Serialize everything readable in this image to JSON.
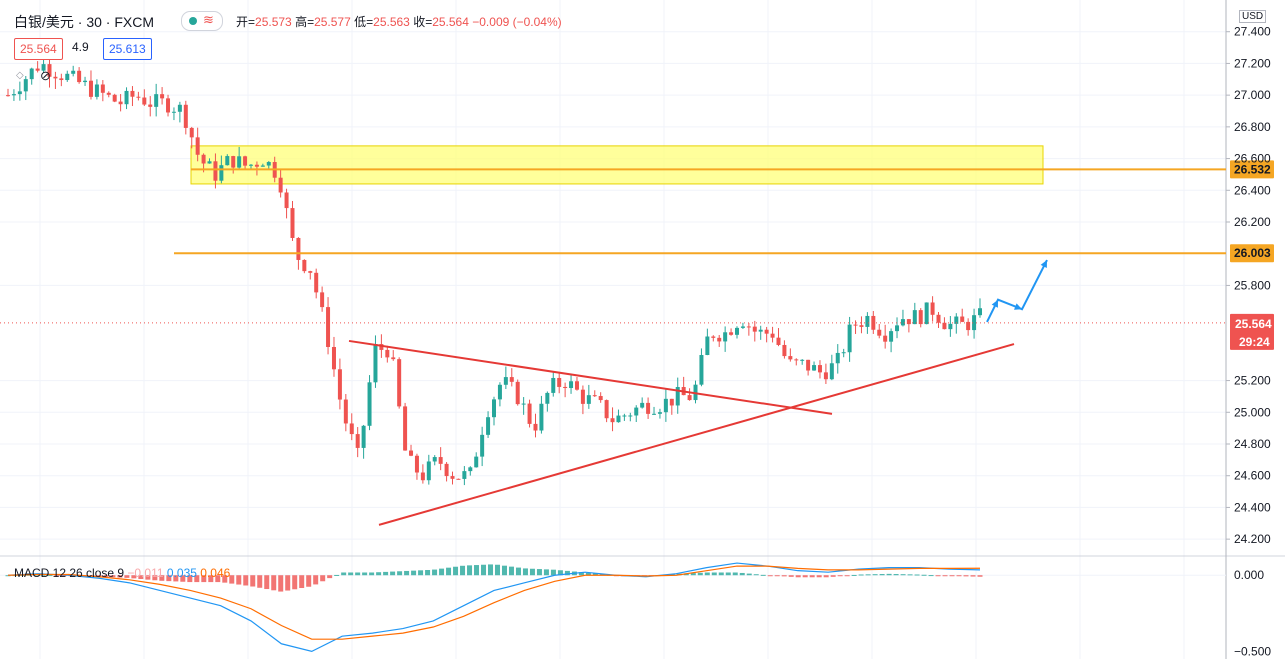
{
  "header": {
    "symbol": "白银/美元 · 30 · FXCM",
    "open_label": "开=",
    "open": "25.573",
    "high_label": "高=",
    "high": "25.577",
    "low_label": "低=",
    "low": "25.563",
    "close_label": "收=",
    "close": "25.564",
    "change": "−0.009 (−0.04%)",
    "bid": "25.564",
    "spread": "4.9",
    "ask": "25.613"
  },
  "macd_label": {
    "name": "MACD 12 26 close 9",
    "hist": "−0.011",
    "macd": "0.035",
    "signal": "0.046"
  },
  "currency": "USD",
  "colors": {
    "up": "#26a69a",
    "down": "#ef5350",
    "zone": "#ffff7a",
    "level": "#f5a623",
    "trend": "#e53935",
    "arrow": "#2196f3",
    "macd": "#2196f3",
    "signal": "#ff6d00"
  },
  "chart_data": {
    "type": "candlestick",
    "ylim": [
      24.1,
      27.6
    ],
    "ticks": [
      "27.400",
      "27.200",
      "27.000",
      "26.800",
      "26.600",
      "26.400",
      "26.200",
      "25.800",
      "25.200",
      "25.000",
      "24.800",
      "24.600",
      "24.400",
      "24.200"
    ],
    "price_path": [
      27.0,
      27.1,
      27.2,
      27.15,
      27.1,
      27.05,
      27.0,
      26.95,
      27.0,
      26.95,
      26.95,
      26.9,
      26.6,
      26.5,
      26.6,
      26.55,
      26.6,
      26.5,
      26.0,
      25.9,
      25.5,
      25.0,
      24.7,
      25.4,
      25.4,
      24.7,
      24.6,
      24.7,
      24.6,
      24.6,
      25.0,
      25.2,
      25.1,
      24.9,
      25.15,
      25.2,
      25.1,
      25.05,
      24.95,
      25.0,
      25.05,
      25.05,
      25.1,
      25.1,
      25.5,
      25.5,
      25.6,
      25.5,
      25.5,
      25.3,
      25.3,
      25.25,
      25.3,
      25.55,
      25.6,
      25.5,
      25.6,
      25.6,
      25.65,
      25.55,
      25.55,
      25.6
    ],
    "zone": {
      "from": 26.44,
      "to": 26.68
    },
    "levels": [
      {
        "value": 26.532,
        "label": "26.532"
      },
      {
        "value": 26.003,
        "label": "26.003"
      }
    ],
    "last": {
      "value": 25.564,
      "label": "25.564",
      "countdown": "29:24"
    },
    "macd": {
      "ticks": [
        "0.000",
        "−0.500"
      ],
      "ylim": [
        -0.55,
        0.1
      ],
      "macd_line": [
        0.0,
        0.01,
        0.0,
        -0.02,
        -0.05,
        -0.1,
        -0.15,
        -0.2,
        -0.3,
        -0.45,
        -0.5,
        -0.4,
        -0.38,
        -0.35,
        -0.3,
        -0.2,
        -0.1,
        -0.05,
        0.0,
        0.02,
        0.0,
        -0.01,
        0.01,
        0.05,
        0.08,
        0.06,
        0.03,
        0.02,
        0.04,
        0.05,
        0.05,
        0.04,
        0.035
      ],
      "signal_line": [
        0.0,
        0.005,
        0.005,
        -0.01,
        -0.03,
        -0.06,
        -0.1,
        -0.15,
        -0.22,
        -0.33,
        -0.42,
        -0.42,
        -0.4,
        -0.38,
        -0.34,
        -0.27,
        -0.18,
        -0.1,
        -0.04,
        0.0,
        0.0,
        -0.005,
        0.0,
        0.03,
        0.06,
        0.06,
        0.045,
        0.035,
        0.035,
        0.04,
        0.045,
        0.045,
        0.046
      ]
    }
  }
}
